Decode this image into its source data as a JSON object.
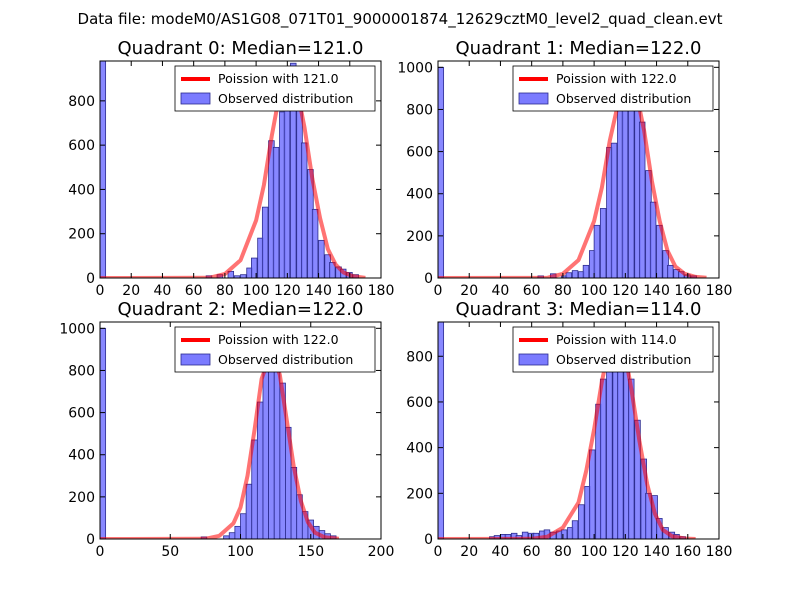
{
  "figure": {
    "suptitle": "Data file: modeM0/AS1G08_071T01_9000001874_12629cztM0_level2_quad_clean.evt"
  },
  "chart_data": [
    {
      "type": "histogram",
      "title": "Quadrant 0: Median=121.0",
      "median": 121.0,
      "xlim": [
        0,
        180
      ],
      "ylim": [
        0,
        980
      ],
      "xticks": [
        0,
        20,
        40,
        60,
        80,
        100,
        120,
        140,
        160,
        180
      ],
      "yticks": [
        0,
        200,
        400,
        600,
        800
      ],
      "bin_width": 3.6,
      "bins": [
        [
          0,
          980
        ],
        [
          68,
          10
        ],
        [
          75,
          15
        ],
        [
          82,
          30
        ],
        [
          86,
          10
        ],
        [
          90,
          15
        ],
        [
          94,
          45
        ],
        [
          97,
          90
        ],
        [
          101,
          180
        ],
        [
          104,
          320
        ],
        [
          108,
          620
        ],
        [
          111,
          590
        ],
        [
          115,
          750
        ],
        [
          118,
          940
        ],
        [
          122,
          970
        ],
        [
          126,
          830
        ],
        [
          129,
          610
        ],
        [
          133,
          490
        ],
        [
          136,
          310
        ],
        [
          140,
          170
        ],
        [
          144,
          105
        ],
        [
          147,
          70
        ],
        [
          151,
          50
        ],
        [
          154,
          40
        ],
        [
          158,
          25
        ],
        [
          162,
          15
        ]
      ],
      "poisson": [
        [
          0,
          0
        ],
        [
          70,
          1
        ],
        [
          80,
          18
        ],
        [
          90,
          80
        ],
        [
          100,
          260
        ],
        [
          105,
          420
        ],
        [
          110,
          640
        ],
        [
          115,
          830
        ],
        [
          121,
          950
        ],
        [
          126,
          860
        ],
        [
          131,
          680
        ],
        [
          136,
          450
        ],
        [
          141,
          270
        ],
        [
          146,
          130
        ],
        [
          151,
          60
        ],
        [
          156,
          25
        ],
        [
          162,
          8
        ],
        [
          170,
          1
        ]
      ],
      "legend": {
        "poisson": "Poission with 121.0",
        "observed": "Observed distribution"
      },
      "colors": {
        "line": "#ff0000",
        "bar": "#7b7bff"
      }
    },
    {
      "type": "histogram",
      "title": "Quadrant 1: Median=122.0",
      "median": 122.0,
      "xlim": [
        0,
        180
      ],
      "ylim": [
        0,
        1030
      ],
      "xticks": [
        0,
        20,
        40,
        60,
        80,
        100,
        120,
        140,
        160,
        180
      ],
      "yticks": [
        0,
        200,
        400,
        600,
        800,
        1000
      ],
      "bin_width": 3.6,
      "bins": [
        [
          0,
          1000
        ],
        [
          64,
          10
        ],
        [
          72,
          20
        ],
        [
          79,
          10
        ],
        [
          82,
          25
        ],
        [
          86,
          35
        ],
        [
          90,
          30
        ],
        [
          93,
          60
        ],
        [
          97,
          130
        ],
        [
          100,
          250
        ],
        [
          104,
          330
        ],
        [
          108,
          620
        ],
        [
          111,
          640
        ],
        [
          115,
          850
        ],
        [
          118,
          980
        ],
        [
          122,
          950
        ],
        [
          126,
          810
        ],
        [
          129,
          740
        ],
        [
          133,
          510
        ],
        [
          136,
          360
        ],
        [
          140,
          250
        ],
        [
          144,
          130
        ],
        [
          147,
          60
        ],
        [
          151,
          40
        ],
        [
          154,
          30
        ],
        [
          158,
          15
        ],
        [
          162,
          10
        ]
      ],
      "poisson": [
        [
          0,
          0
        ],
        [
          70,
          1
        ],
        [
          80,
          20
        ],
        [
          90,
          85
        ],
        [
          100,
          270
        ],
        [
          105,
          430
        ],
        [
          110,
          650
        ],
        [
          116,
          850
        ],
        [
          122,
          965
        ],
        [
          127,
          880
        ],
        [
          132,
          700
        ],
        [
          137,
          460
        ],
        [
          142,
          270
        ],
        [
          147,
          130
        ],
        [
          152,
          55
        ],
        [
          158,
          20
        ],
        [
          165,
          5
        ],
        [
          172,
          1
        ]
      ],
      "legend": {
        "poisson": "Poission with 122.0",
        "observed": "Observed distribution"
      },
      "colors": {
        "line": "#ff0000",
        "bar": "#7b7bff"
      }
    },
    {
      "type": "histogram",
      "title": "Quadrant 2: Median=122.0",
      "median": 122.0,
      "xlim": [
        0,
        200
      ],
      "ylim": [
        0,
        1030
      ],
      "xticks": [
        0,
        50,
        100,
        150,
        200
      ],
      "yticks": [
        0,
        200,
        400,
        600,
        800,
        1000
      ],
      "bin_width": 4.0,
      "bins": [
        [
          0,
          1000
        ],
        [
          72,
          10
        ],
        [
          88,
          15
        ],
        [
          92,
          30
        ],
        [
          96,
          60
        ],
        [
          100,
          120
        ],
        [
          104,
          260
        ],
        [
          108,
          470
        ],
        [
          112,
          650
        ],
        [
          116,
          840
        ],
        [
          120,
          950
        ],
        [
          124,
          900
        ],
        [
          128,
          740
        ],
        [
          132,
          530
        ],
        [
          136,
          340
        ],
        [
          140,
          210
        ],
        [
          144,
          130
        ],
        [
          148,
          90
        ],
        [
          152,
          60
        ],
        [
          156,
          40
        ],
        [
          160,
          25
        ],
        [
          164,
          15
        ]
      ],
      "poisson": [
        [
          0,
          0
        ],
        [
          75,
          1
        ],
        [
          85,
          15
        ],
        [
          95,
          75
        ],
        [
          100,
          150
        ],
        [
          105,
          300
        ],
        [
          110,
          520
        ],
        [
          115,
          760
        ],
        [
          122,
          890
        ],
        [
          128,
          780
        ],
        [
          133,
          560
        ],
        [
          138,
          340
        ],
        [
          143,
          180
        ],
        [
          148,
          80
        ],
        [
          153,
          30
        ],
        [
          160,
          8
        ],
        [
          170,
          1
        ]
      ],
      "legend": {
        "poisson": "Poission with 122.0",
        "observed": "Observed distribution"
      },
      "colors": {
        "line": "#ff0000",
        "bar": "#7b7bff"
      }
    },
    {
      "type": "histogram",
      "title": "Quadrant 3: Median=114.0",
      "median": 114.0,
      "xlim": [
        0,
        180
      ],
      "ylim": [
        0,
        950
      ],
      "xticks": [
        0,
        20,
        40,
        60,
        80,
        100,
        120,
        140,
        160,
        180
      ],
      "yticks": [
        0,
        200,
        400,
        600,
        800
      ],
      "bin_width": 3.6,
      "bins": [
        [
          0,
          950
        ],
        [
          33,
          10
        ],
        [
          36,
          15
        ],
        [
          40,
          20
        ],
        [
          43,
          20
        ],
        [
          47,
          25
        ],
        [
          50,
          15
        ],
        [
          54,
          30
        ],
        [
          58,
          25
        ],
        [
          61,
          25
        ],
        [
          65,
          35
        ],
        [
          68,
          40
        ],
        [
          72,
          30
        ],
        [
          76,
          35
        ],
        [
          79,
          40
        ],
        [
          83,
          50
        ],
        [
          86,
          80
        ],
        [
          90,
          150
        ],
        [
          94,
          230
        ],
        [
          97,
          390
        ],
        [
          101,
          590
        ],
        [
          104,
          700
        ],
        [
          108,
          830
        ],
        [
          112,
          870
        ],
        [
          115,
          900
        ],
        [
          119,
          760
        ],
        [
          122,
          700
        ],
        [
          126,
          520
        ],
        [
          130,
          350
        ],
        [
          133,
          200
        ],
        [
          137,
          190
        ],
        [
          140,
          90
        ],
        [
          144,
          50
        ],
        [
          148,
          30
        ],
        [
          151,
          20
        ],
        [
          155,
          10
        ]
      ],
      "poisson": [
        [
          0,
          0
        ],
        [
          60,
          1
        ],
        [
          70,
          10
        ],
        [
          80,
          50
        ],
        [
          90,
          160
        ],
        [
          95,
          300
        ],
        [
          100,
          480
        ],
        [
          105,
          690
        ],
        [
          110,
          850
        ],
        [
          114,
          910
        ],
        [
          119,
          840
        ],
        [
          124,
          650
        ],
        [
          129,
          430
        ],
        [
          134,
          240
        ],
        [
          139,
          110
        ],
        [
          144,
          40
        ],
        [
          150,
          12
        ],
        [
          158,
          2
        ],
        [
          165,
          0
        ]
      ],
      "legend": {
        "poisson": "Poission with 114.0",
        "observed": "Observed distribution"
      },
      "colors": {
        "line": "#ff0000",
        "bar": "#7b7bff"
      }
    }
  ]
}
